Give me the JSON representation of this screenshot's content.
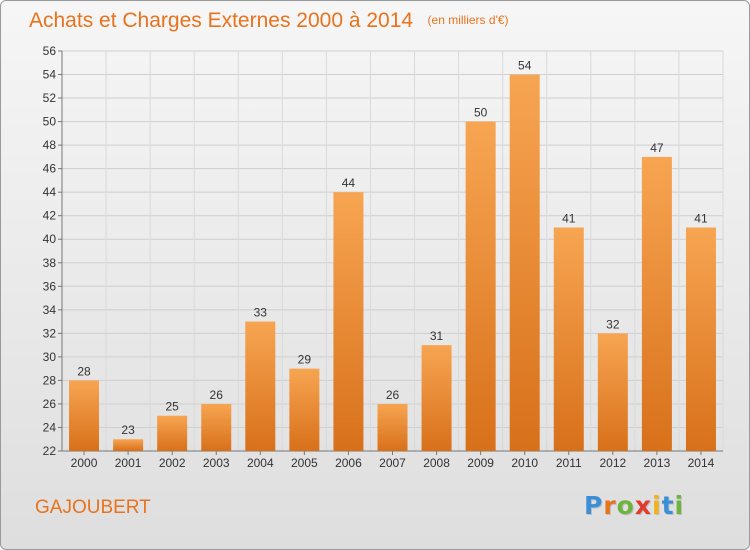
{
  "title": "Achats et Charges Externes 2000 à 2014",
  "subtitle": "(en milliers d'€)",
  "commune": "GAJOUBERT",
  "brand": {
    "letters": [
      "P",
      "r",
      "o",
      "x",
      "i",
      "t",
      "i"
    ],
    "colors": [
      "#3c8fd6",
      "#e8731e",
      "#6cb33f",
      "#e23b2e",
      "#f2b21b",
      "#3c8fd6",
      "#6cb33f"
    ]
  },
  "colors": {
    "bar_top": "#f7a552",
    "bar_bottom": "#d8701a",
    "title": "#e8731e"
  },
  "chart_data": {
    "type": "bar",
    "title": "Achats et Charges Externes 2000 à 2014",
    "subtitle": "(en milliers d'€)",
    "categories": [
      "2000",
      "2001",
      "2002",
      "2003",
      "2004",
      "2005",
      "2006",
      "2007",
      "2008",
      "2009",
      "2010",
      "2011",
      "2012",
      "2013",
      "2014"
    ],
    "values": [
      28,
      23,
      25,
      26,
      33,
      29,
      44,
      26,
      31,
      50,
      54,
      41,
      32,
      47,
      41
    ],
    "ylim": [
      22,
      56
    ],
    "yticks": [
      22,
      24,
      26,
      28,
      30,
      32,
      34,
      36,
      38,
      40,
      42,
      44,
      46,
      48,
      50,
      52,
      54,
      56
    ],
    "grid": true,
    "data_labels": true
  }
}
